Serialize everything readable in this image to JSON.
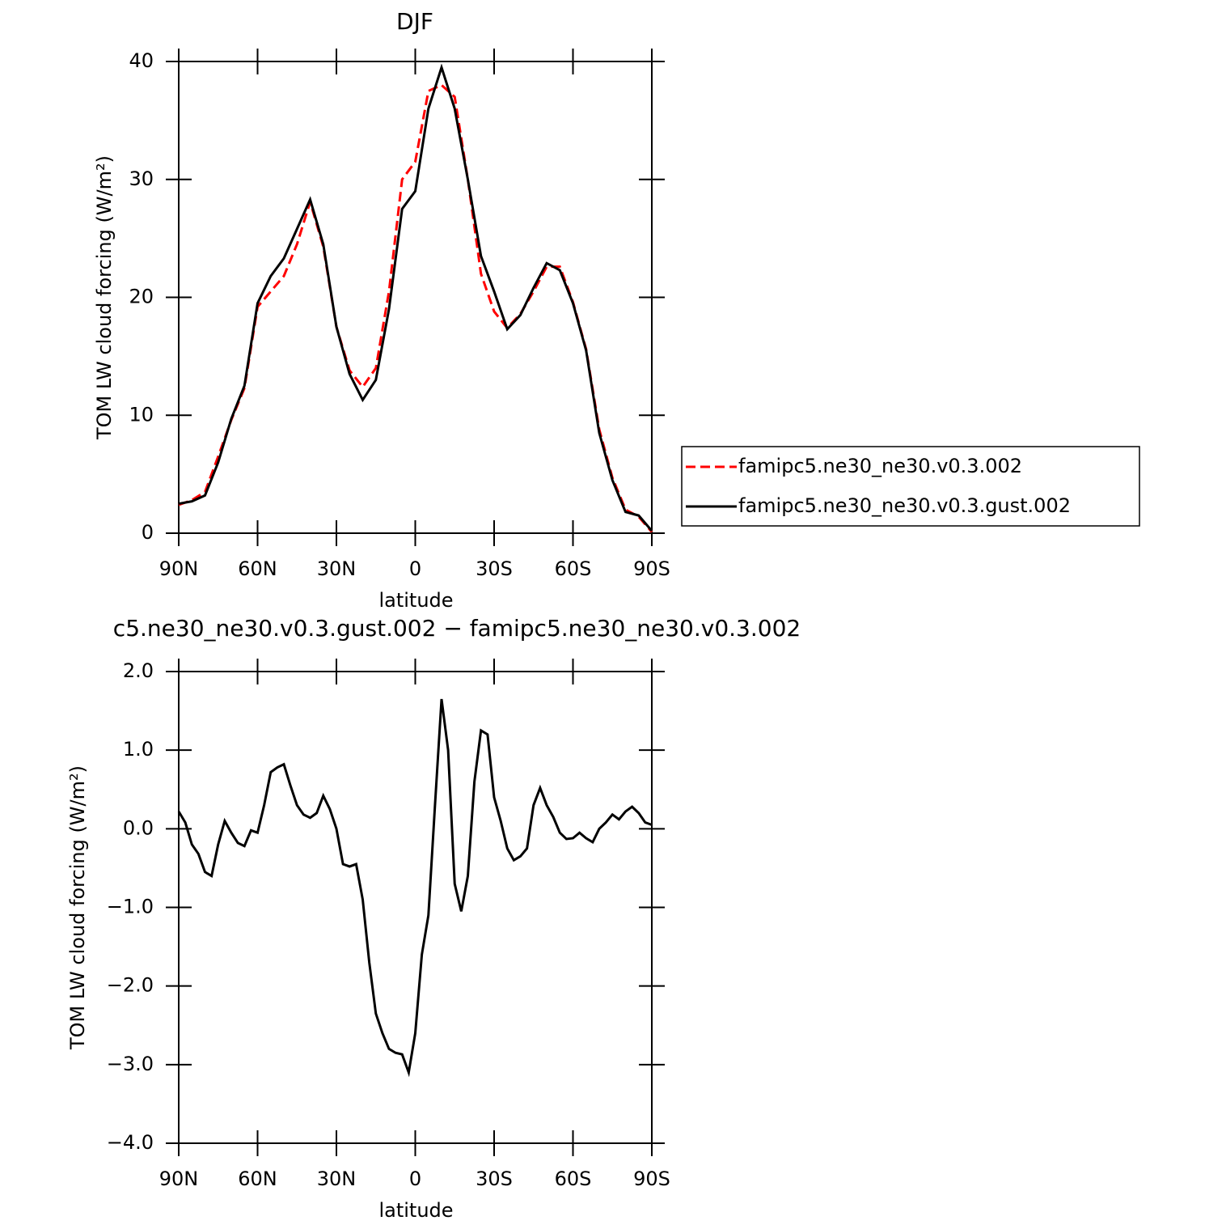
{
  "chart_data": [
    {
      "type": "line",
      "title": "DJF",
      "xlabel": "latitude",
      "ylabel": "TOM LW cloud forcing (W/m²)",
      "x": [
        90,
        85,
        80,
        75,
        70,
        65,
        60,
        55,
        50,
        45,
        40,
        35,
        30,
        25,
        20,
        15,
        10,
        5,
        0,
        -5,
        -10,
        -15,
        -20,
        -25,
        -30,
        -35,
        -40,
        -45,
        -50,
        -55,
        -60,
        -65,
        -70,
        -75,
        -80,
        -85,
        -90
      ],
      "series": [
        {
          "name": "famipc5.ne30_ne30.v0.3.002",
          "color": "#ff0000",
          "style": "dashed",
          "values": [
            2.4,
            2.8,
            3.5,
            6.5,
            9.6,
            12.3,
            19.2,
            20.5,
            21.8,
            24.5,
            28.1,
            24.3,
            17.5,
            13.8,
            12.4,
            14,
            20.5,
            30,
            31.5,
            37.5,
            38,
            37,
            30,
            22,
            18.8,
            17.4,
            18.6,
            20.5,
            22.6,
            22.6,
            19.6,
            15.6,
            8.8,
            4.7,
            2.0,
            1.4,
            0.1
          ]
        },
        {
          "name": "famipc5.ne30_ne30.v0.3.gust.002",
          "color": "#000000",
          "style": "solid",
          "values": [
            2.5,
            2.7,
            3.2,
            6.0,
            9.7,
            12.5,
            19.5,
            21.8,
            23.3,
            25.8,
            28.3,
            24.5,
            17.5,
            13.5,
            11.3,
            13,
            19,
            27.5,
            29,
            36,
            39.5,
            36,
            30,
            23.5,
            20.5,
            17.3,
            18.5,
            20.8,
            22.9,
            22.3,
            19.5,
            15.5,
            8.5,
            4.5,
            1.8,
            1.5,
            0.2
          ]
        }
      ],
      "xlim": [
        90,
        -90
      ],
      "xticks": [
        {
          "value": 90,
          "label": "90N"
        },
        {
          "value": 60,
          "label": "60N"
        },
        {
          "value": 30,
          "label": "30N"
        },
        0,
        {
          "value": -30,
          "label": "30S"
        },
        {
          "value": -60,
          "label": "60S"
        },
        {
          "value": -90,
          "label": "90S"
        }
      ],
      "ylim": [
        0,
        40
      ],
      "yticks": [
        0,
        10,
        20,
        30,
        40
      ],
      "legend": "right"
    },
    {
      "type": "line",
      "title": "c5.ne30_ne30.v0.3.gust.002 − famipc5.ne30_ne30.v0.3.002",
      "xlabel": "latitude",
      "ylabel": "TOM LW cloud forcing (W/m²)",
      "x": [
        90,
        87.5,
        85,
        82.5,
        80,
        77.5,
        75,
        72.5,
        70,
        67.5,
        65,
        62.5,
        60,
        57.5,
        55,
        52.5,
        50,
        47.5,
        45,
        42.5,
        40,
        37.5,
        35,
        32.5,
        30,
        27.5,
        25,
        22.5,
        20,
        17.5,
        15,
        12.5,
        10,
        7.5,
        5,
        2.5,
        0,
        -2.5,
        -5,
        -7.5,
        -10,
        -12.5,
        -15,
        -17.5,
        -20,
        -22.5,
        -25,
        -27.5,
        -30,
        -32.5,
        -35,
        -37.5,
        -40,
        -42.5,
        -45,
        -47.5,
        -50,
        -52.5,
        -55,
        -57.5,
        -60,
        -62.5,
        -65,
        -67.5,
        -70,
        -72.5,
        -75,
        -77.5,
        -80,
        -82.5,
        -85,
        -87.5,
        -90
      ],
      "color": "#000000",
      "values": [
        0.22,
        0.08,
        -0.2,
        -0.32,
        -0.55,
        -0.6,
        -0.2,
        0.1,
        -0.05,
        -0.18,
        -0.22,
        -0.02,
        -0.05,
        0.3,
        0.72,
        0.78,
        0.82,
        0.55,
        0.3,
        0.18,
        0.14,
        0.2,
        0.42,
        0.25,
        0.0,
        -0.45,
        -0.48,
        -0.45,
        -0.9,
        -1.7,
        -2.35,
        -2.6,
        -2.8,
        -2.85,
        -2.87,
        -3.1,
        -2.6,
        -1.6,
        -1.1,
        0.3,
        1.65,
        1.0,
        -0.7,
        -1.05,
        -0.6,
        0.6,
        1.25,
        1.2,
        0.4,
        0.1,
        -0.25,
        -0.4,
        -0.35,
        -0.25,
        0.3,
        0.52,
        0.3,
        0.15,
        -0.05,
        -0.13,
        -0.12,
        -0.05,
        -0.12,
        -0.17,
        0.0,
        0.08,
        0.18,
        0.12,
        0.22,
        0.28,
        0.2,
        0.08,
        0.05
      ],
      "xlim": [
        90,
        -90
      ],
      "xticks": [
        {
          "value": 90,
          "label": "90N"
        },
        {
          "value": 60,
          "label": "60N"
        },
        {
          "value": 30,
          "label": "30N"
        },
        0,
        {
          "value": -30,
          "label": "30S"
        },
        {
          "value": -60,
          "label": "60S"
        },
        {
          "value": -90,
          "label": "90S"
        }
      ],
      "ylim": [
        -4,
        2
      ],
      "yticks": [
        {
          "value": -4,
          "label": "−4.0"
        },
        {
          "value": -3,
          "label": "−3.0"
        },
        {
          "value": -2,
          "label": "−2.0"
        },
        {
          "value": -1,
          "label": "−1.0"
        },
        {
          "value": 0,
          "label": "0.0"
        },
        {
          "value": 1,
          "label": "1.0"
        },
        {
          "value": 2,
          "label": "2.0"
        }
      ]
    }
  ]
}
